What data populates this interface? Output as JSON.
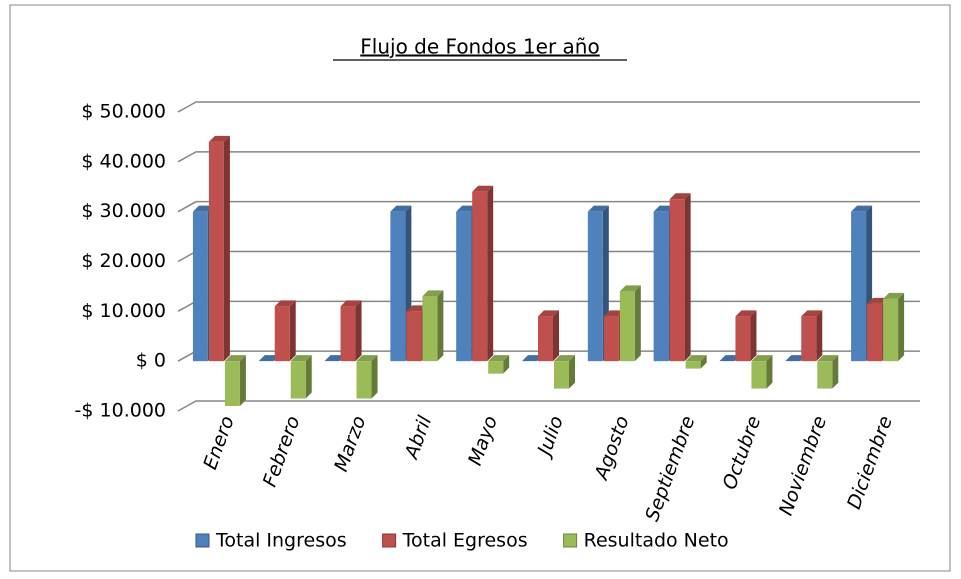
{
  "chart_data": {
    "type": "bar",
    "title": "Flujo de Fondos 1er año",
    "categories": [
      "Enero",
      "Febrero",
      "Marzo",
      "Abril",
      "Mayo",
      "Julio",
      "Agosto",
      "Septiembre",
      "Octubre",
      "Noviembre",
      "Diciembre"
    ],
    "series": [
      {
        "name": "Total Ingresos",
        "color": "#4f81bd",
        "values": [
          30000,
          0,
          0,
          30000,
          30000,
          0,
          30000,
          30000,
          0,
          0,
          30000
        ]
      },
      {
        "name": "Total Egresos",
        "color": "#c0504d",
        "values": [
          44000,
          11000,
          11000,
          10000,
          34000,
          9000,
          9000,
          32500,
          9000,
          9000,
          11500
        ]
      },
      {
        "name": "Resultado Neto",
        "color": "#9bbb59",
        "values": [
          -9000,
          -7500,
          -7500,
          13000,
          -2500,
          -5500,
          14000,
          -1500,
          -5500,
          -5500,
          12500
        ]
      }
    ],
    "ylim": [
      -10000,
      50000
    ],
    "yticks": [
      {
        "value": -10000,
        "label": "-$ 10.000"
      },
      {
        "value": 0,
        "label": "$ 0"
      },
      {
        "value": 10000,
        "label": "$ 10.000"
      },
      {
        "value": 20000,
        "label": "$ 20.000"
      },
      {
        "value": 30000,
        "label": "$ 30.000"
      },
      {
        "value": 40000,
        "label": "$ 40.000"
      },
      {
        "value": 50000,
        "label": "$ 50.000"
      }
    ],
    "grid": true,
    "legend": "bottom"
  }
}
